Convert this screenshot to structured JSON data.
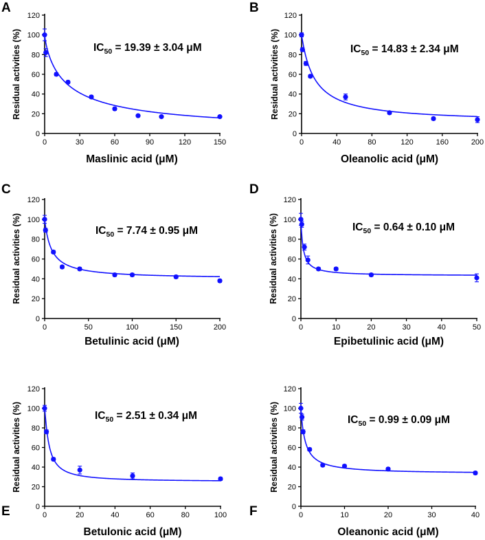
{
  "colors": {
    "series": "#1010ff",
    "axis": "#000000",
    "background": "#ffffff"
  },
  "chart_data": [
    {
      "type": "scatter",
      "panel": "A",
      "ic50_prefix": "IC",
      "ic50_sub": "50",
      "ic50_value": " = 19.39 ± 3.04 μM",
      "xlabel": "Maslinic acid (μM)",
      "ylabel": "Residual activities (%)",
      "xlim": [
        0,
        150
      ],
      "ylim": [
        0,
        120
      ],
      "xticks": [
        0,
        30,
        60,
        90,
        120,
        150
      ],
      "yticks": [
        0,
        20,
        40,
        60,
        80,
        100,
        120
      ],
      "x": [
        0,
        1,
        10,
        20,
        40,
        60,
        80,
        100,
        150
      ],
      "y": [
        100,
        82,
        60,
        52,
        37,
        25,
        18,
        17,
        17
      ],
      "errors": [
        6,
        4,
        1.5,
        1.5,
        1.5,
        1.5,
        1,
        1,
        1
      ],
      "fit": {
        "model": "IC50 dose-response",
        "top": 100,
        "bottom": 0,
        "ic50": 19.39,
        "hill": 0.82
      }
    },
    {
      "type": "scatter",
      "panel": "B",
      "ic50_prefix": "IC",
      "ic50_sub": "50",
      "ic50_value": " = 14.83 ± 2.34 μM",
      "xlabel": "Oleanolic acid (μM)",
      "ylabel": "Residual activities (%)",
      "xlim": [
        0,
        200
      ],
      "ylim": [
        0,
        120
      ],
      "xticks": [
        0,
        40,
        80,
        120,
        160,
        200
      ],
      "yticks": [
        0,
        20,
        40,
        60,
        80,
        100,
        120
      ],
      "x": [
        0,
        1,
        5,
        10,
        50,
        100,
        150,
        200
      ],
      "y": [
        100,
        85,
        71,
        58,
        37,
        21,
        15,
        14
      ],
      "errors": [
        2,
        2,
        2,
        1.5,
        3,
        1.5,
        1.5,
        3
      ],
      "fit": {
        "model": "IC50 dose-response",
        "top": 100,
        "bottom": 11,
        "ic50": 14.83,
        "hill": 1.0
      }
    },
    {
      "type": "scatter",
      "panel": "C",
      "ic50_prefix": "IC",
      "ic50_sub": "50",
      "ic50_value": " = 7.74 ± 0.95 μM",
      "xlabel": "Betulinic acid (μM)",
      "ylabel": "Residual activities (%)",
      "xlim": [
        0,
        200
      ],
      "ylim": [
        0,
        120
      ],
      "xticks": [
        0,
        50,
        100,
        150,
        200
      ],
      "yticks": [
        0,
        20,
        40,
        60,
        80,
        100,
        120
      ],
      "x": [
        0,
        1,
        10,
        20,
        40,
        80,
        100,
        150,
        200
      ],
      "y": [
        100,
        89,
        67,
        52,
        50,
        44,
        44,
        42,
        38
      ],
      "errors": [
        4,
        2,
        1.5,
        1.5,
        1.5,
        1.5,
        1.5,
        1.5,
        1.5
      ],
      "fit": {
        "model": "IC50 dose-response",
        "top": 100,
        "bottom": 40,
        "ic50": 7.74,
        "hill": 1.0
      }
    },
    {
      "type": "scatter",
      "panel": "D",
      "ic50_prefix": "IC",
      "ic50_sub": "50",
      "ic50_value": " = 0.64 ± 0.10 μM",
      "xlabel": "Epibetulinic acid (μM)",
      "ylabel": "Residual activities (%)",
      "xlim": [
        0,
        50
      ],
      "ylim": [
        0,
        120
      ],
      "xticks": [
        0,
        10,
        20,
        30,
        40,
        50
      ],
      "yticks": [
        0,
        20,
        40,
        60,
        80,
        100,
        120
      ],
      "x": [
        0,
        0.25,
        1,
        2,
        5,
        10,
        20,
        50
      ],
      "y": [
        100,
        95,
        72,
        59,
        50,
        50,
        44,
        41
      ],
      "errors": [
        6,
        3,
        3,
        4,
        1.5,
        1.5,
        1.5,
        4
      ],
      "fit": {
        "model": "IC50 dose-response",
        "top": 100,
        "bottom": 43,
        "ic50": 0.64,
        "hill": 1.0
      }
    },
    {
      "type": "scatter",
      "panel": "E",
      "ic50_prefix": "IC",
      "ic50_sub": "50",
      "ic50_value": " = 2.51 ± 0.34 μM",
      "xlabel": "Betulonic acid (μM)",
      "ylabel": "Residual activities (%)",
      "xlim": [
        0,
        100
      ],
      "ylim": [
        0,
        120
      ],
      "xticks": [
        0,
        20,
        40,
        60,
        80,
        100
      ],
      "yticks": [
        0,
        20,
        40,
        60,
        80,
        100,
        120
      ],
      "x": [
        0,
        1,
        5,
        20,
        50,
        100
      ],
      "y": [
        100,
        76,
        48,
        37,
        31,
        28
      ],
      "errors": [
        3,
        2,
        1.5,
        4,
        3,
        1.5
      ],
      "fit": {
        "model": "IC50 dose-response",
        "top": 100,
        "bottom": 25,
        "ic50": 2.51,
        "hill": 1.15
      }
    },
    {
      "type": "scatter",
      "panel": "F",
      "ic50_prefix": "IC",
      "ic50_sub": "50",
      "ic50_value": " = 0.99 ± 0.09 μM",
      "xlabel": "Oleanonic acid (μM)",
      "ylabel": "Residual activities (%)",
      "xlim": [
        0,
        40
      ],
      "ylim": [
        0,
        120
      ],
      "xticks": [
        0,
        10,
        20,
        30,
        40
      ],
      "yticks": [
        0,
        20,
        40,
        60,
        80,
        100,
        120
      ],
      "x": [
        0,
        0.25,
        0.5,
        2,
        5,
        10,
        20,
        40
      ],
      "y": [
        100,
        91,
        76,
        58,
        42,
        41,
        38,
        34
      ],
      "errors": [
        5,
        3,
        2,
        1.5,
        1.5,
        1.5,
        1.5,
        1.5
      ],
      "fit": {
        "model": "IC50 dose-response",
        "top": 100,
        "bottom": 33,
        "ic50": 0.99,
        "hill": 1.0
      }
    }
  ]
}
